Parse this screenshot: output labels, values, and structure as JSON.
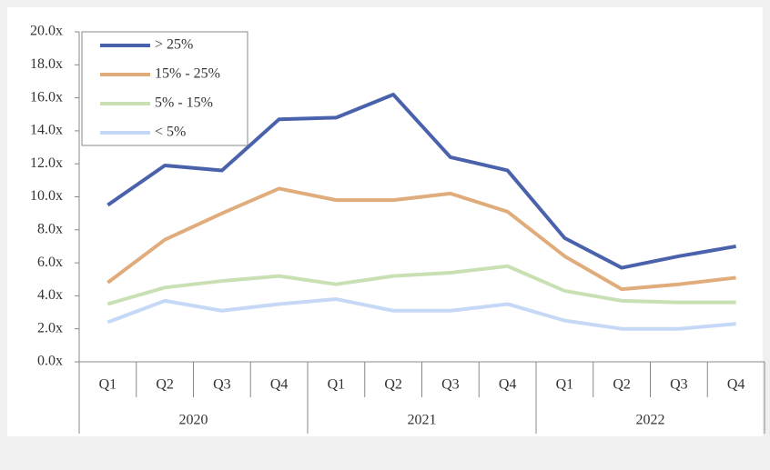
{
  "chart_data": {
    "type": "line",
    "categories": [
      "Q1",
      "Q2",
      "Q3",
      "Q4",
      "Q1",
      "Q2",
      "Q3",
      "Q4",
      "Q1",
      "Q2",
      "Q3",
      "Q4"
    ],
    "groups": [
      "2020",
      "2021",
      "2022"
    ],
    "series": [
      {
        "name": "> 25%",
        "color": "#4a62ac",
        "values": [
          9.5,
          11.9,
          11.6,
          14.7,
          14.8,
          16.2,
          12.4,
          11.6,
          7.5,
          5.7,
          6.4,
          7.0
        ]
      },
      {
        "name": "15% - 25%",
        "color": "#e0ac7c",
        "values": [
          4.8,
          7.4,
          9.0,
          10.5,
          9.8,
          9.8,
          10.2,
          9.1,
          6.4,
          4.4,
          4.7,
          5.1
        ]
      },
      {
        "name": "5% - 15%",
        "color": "#c9e0b4",
        "values": [
          3.5,
          4.5,
          4.9,
          5.2,
          4.7,
          5.2,
          5.4,
          5.8,
          4.3,
          3.7,
          3.6,
          3.6
        ]
      },
      {
        "name": "< 5%",
        "color": "#c5d8f5",
        "values": [
          2.4,
          3.7,
          3.1,
          3.5,
          3.8,
          3.1,
          3.1,
          3.5,
          2.5,
          2.0,
          2.0,
          2.3
        ]
      }
    ],
    "ylim": [
      0,
      20
    ],
    "yticks": [
      {
        "value": 0,
        "label": "0.0x"
      },
      {
        "value": 2,
        "label": "2.0x"
      },
      {
        "value": 4,
        "label": "4.0x"
      },
      {
        "value": 6,
        "label": "6.0x"
      },
      {
        "value": 8,
        "label": "8.0x"
      },
      {
        "value": 10,
        "label": "10.0x"
      },
      {
        "value": 12,
        "label": "12.0x"
      },
      {
        "value": 14,
        "label": "14.0x"
      },
      {
        "value": 16,
        "label": "16.0x"
      },
      {
        "value": 18,
        "label": "18.0x"
      },
      {
        "value": 20,
        "label": "20.0x"
      }
    ],
    "legend": "upper left"
  }
}
